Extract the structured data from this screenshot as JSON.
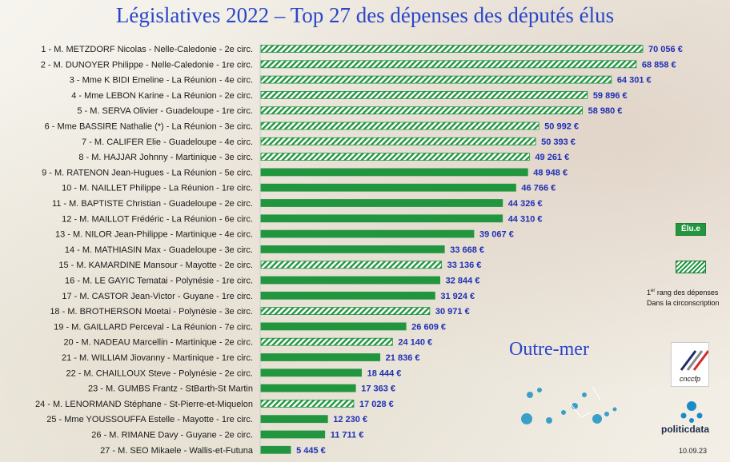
{
  "chart_data": {
    "type": "bar",
    "orientation": "horizontal",
    "title": "Législatives 2022 – Top 27 des dépenses des députés élus",
    "categories": [
      "1 -  M. METZDORF Nicolas -  Nelle-Caledonie - 2e circ.",
      "2 -  M. DUNOYER Philippe -  Nelle-Caledonie - 1re circ.",
      "3 -  Mme K BIDI Emeline -  La Réunion - 4e circ.",
      "4 -  Mme LEBON Karine -  La Réunion - 2e circ.",
      "5 -  M. SERVA Olivier -  Guadeloupe - 1re circ.",
      "6 -  Mme BASSIRE Nathalie (*) -  La Réunion - 3e circ.",
      "7 -  M. CALIFER Elie -  Guadeloupe - 4e circ.",
      "8 -  M. HAJJAR Johnny -  Martinique - 3e circ.",
      "9 -  M. RATENON Jean-Hugues -  La Réunion - 5e circ.",
      "10 -  M. NAILLET Philippe -  La Réunion - 1re circ.",
      "11 -  M. BAPTISTE Christian -  Guadeloupe - 2e circ.",
      "12 -  M. MAILLOT Frédéric -  La Réunion - 6e circ.",
      "13 -  M. NILOR Jean-Philippe -  Martinique - 4e circ.",
      "14 -  M. MATHIASIN Max -  Guadeloupe - 3e circ.",
      "15 -  M. KAMARDINE Mansour -  Mayotte - 2e circ.",
      "16 -  M. LE GAYIC Tematai -  Polynésie - 1re circ.",
      "17 -  M. CASTOR Jean-Victor -  Guyane - 1re circ.",
      "18 -  M. BROTHERSON Moetai -  Polynésie - 3e circ.",
      "19 -  M. GAILLARD Perceval -  La Réunion - 7e circ.",
      "20 -  M. NADEAU Marcellin -  Martinique - 2e circ.",
      "21 -  M. WILLIAM Jiovanny -  Martinique - 1re circ.",
      "22 -  M. CHAILLOUX Steve -  Polynésie - 2e circ.",
      "23 -  M. GUMBS Frantz -  StBarth-St Martin",
      "24 -  M. LENORMAND Stéphane -  St-Pierre-et-Miquelon",
      "25 -  Mme YOUSSOUFFA Estelle -  Mayotte - 1re circ.",
      "26 -  M. RIMANE Davy -  Guyane - 2e circ.",
      "27 -  M. SEO Mikaele -  Wallis-et-Futuna"
    ],
    "values": [
      70056,
      68858,
      64301,
      59896,
      58980,
      50992,
      50393,
      49261,
      48948,
      46766,
      44326,
      44310,
      39067,
      33668,
      33136,
      32844,
      31924,
      30971,
      26609,
      24140,
      21836,
      18444,
      17363,
      17028,
      12230,
      11711,
      5445
    ],
    "value_labels": [
      "70 056 €",
      "68 858 €",
      "64 301 €",
      "59 896 €",
      "58 980 €",
      "50 992 €",
      "50 393 €",
      "49 261 €",
      "48 948 €",
      "46 766 €",
      "44 326 €",
      "44 310 €",
      "39 067 €",
      "33 668 €",
      "33 136 €",
      "32 844 €",
      "31 924 €",
      "30 971 €",
      "26 609 €",
      "24 140 €",
      "21 836 €",
      "18 444 €",
      "17 363 €",
      "17 028 €",
      "12 230 €",
      "11 711 €",
      "5 445 €"
    ],
    "first_in_constituency": [
      true,
      true,
      true,
      true,
      true,
      true,
      true,
      true,
      false,
      false,
      false,
      false,
      false,
      false,
      true,
      false,
      false,
      true,
      false,
      true,
      false,
      false,
      false,
      true,
      false,
      false,
      false
    ],
    "xlim": [
      0,
      70056
    ],
    "grid": false,
    "legend": [
      {
        "label": "Élu.e",
        "style": "solid"
      },
      {
        "label": "1er rang des dépenses Dans la circonscription",
        "style": "hatched"
      }
    ]
  },
  "colors": {
    "bar": "#21963f",
    "hatch_light": "#ffffff",
    "title": "#2a46c8",
    "value_text": "#1f2fb5"
  },
  "legend_texts": {
    "elu": "Élu.e",
    "first_sup": "er",
    "first_line1_start": "1",
    "first_line1_end": " rang des dépenses",
    "first_line2": "Dans la circonscription"
  },
  "region_label": "Outre-mer",
  "logos": {
    "cnccfp": "cnccfp",
    "politicdata": "politicdata",
    "date": "10.09.23"
  }
}
